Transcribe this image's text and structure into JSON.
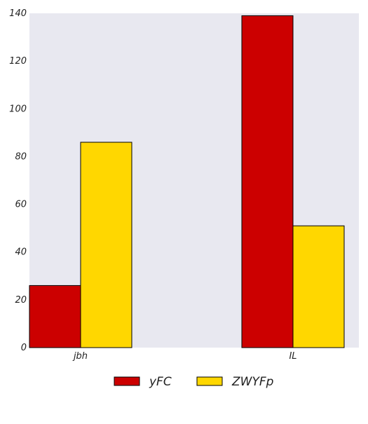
{
  "chart_data": {
    "type": "bar",
    "categories": [
      "jbh",
      "IL"
    ],
    "series": [
      {
        "name": "yFC",
        "values": [
          26,
          139
        ],
        "color": "#cc0000"
      },
      {
        "name": "ZWYFp",
        "values": [
          86,
          51
        ],
        "color": "#ffd700"
      }
    ],
    "ylim": [
      0,
      140
    ],
    "yticks": [
      0,
      20,
      40,
      60,
      80,
      100,
      120,
      140
    ],
    "title": "",
    "xlabel": "",
    "ylabel": "",
    "legend_position": "bottom-center",
    "plot_background": "#e8e8f0",
    "bar_edge_color": "#000000",
    "grid": false
  }
}
